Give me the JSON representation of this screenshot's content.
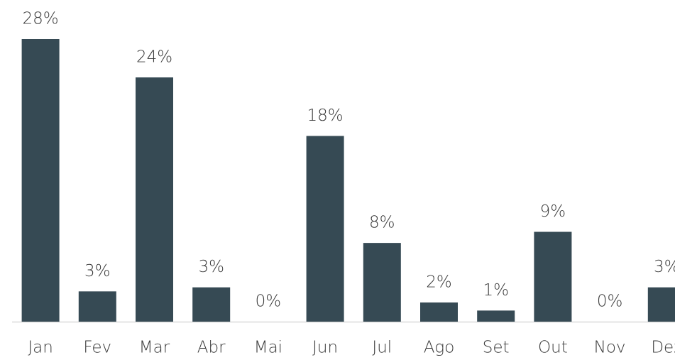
{
  "chart_data": {
    "type": "bar",
    "categories": [
      "Jan",
      "Fev",
      "Mar",
      "Abr",
      "Mai",
      "Jun",
      "Jul",
      "Ago",
      "Set",
      "Out",
      "Nov",
      "Dez"
    ],
    "values": [
      28,
      3,
      24.2,
      3.4,
      0,
      18.4,
      7.8,
      1.9,
      1.1,
      8.9,
      0,
      3.4
    ],
    "value_labels": [
      "28%",
      "3%",
      "24%",
      "3%",
      "0%",
      "18%",
      "8%",
      "2%",
      "1%",
      "9%",
      "0%",
      "3%"
    ],
    "color": "#364a54"
  }
}
